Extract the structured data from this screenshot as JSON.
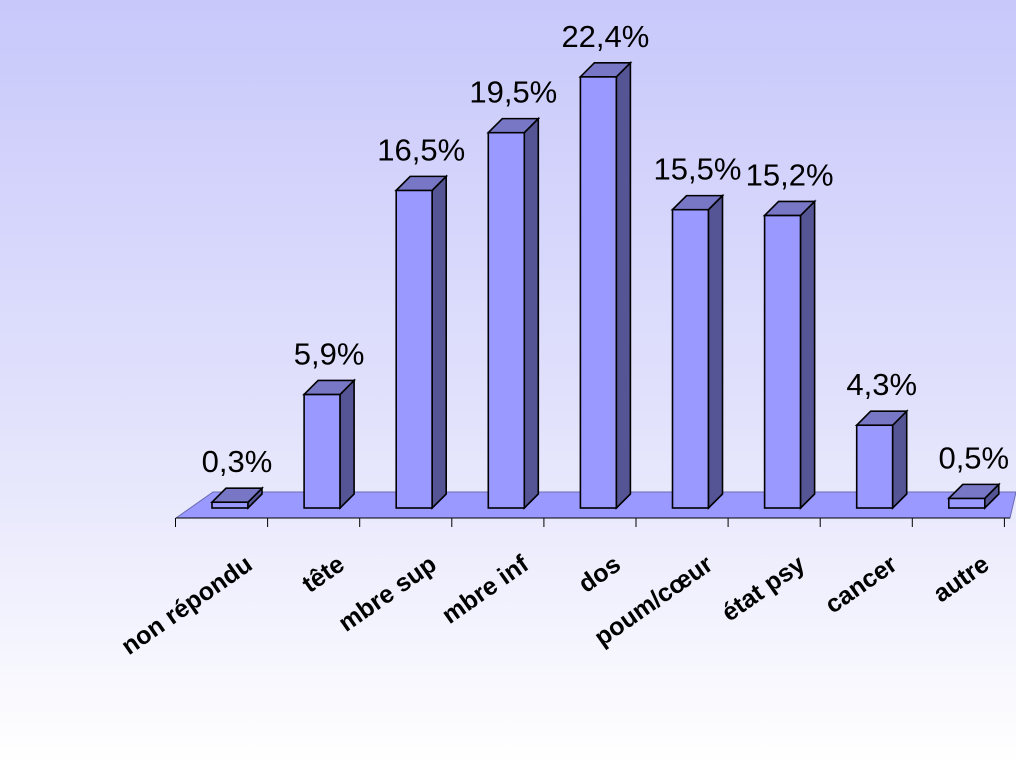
{
  "chart_data": {
    "type": "bar",
    "categories": [
      "non répondu",
      "tête",
      "mbre sup",
      "mbre inf",
      "dos",
      "poum/cœur",
      "état psy",
      "cancer",
      "autre"
    ],
    "values": [
      0.3,
      5.9,
      16.5,
      19.5,
      22.4,
      15.5,
      15.2,
      4.3,
      0.5
    ],
    "data_labels": [
      "0,3%",
      "5,9%",
      "16,5%",
      "19,5%",
      "22,4%",
      "15,5%",
      "15,2%",
      "4,3%",
      "0,5%"
    ],
    "style": "3d-column",
    "ylim": [
      0,
      22.4
    ],
    "grid": false,
    "legend": "none",
    "colors": {
      "bar_front": "#9999ff",
      "bar_side": "#555595",
      "bar_top": "#7777c6",
      "floor": "#9999ff",
      "outline": "#000000"
    }
  }
}
